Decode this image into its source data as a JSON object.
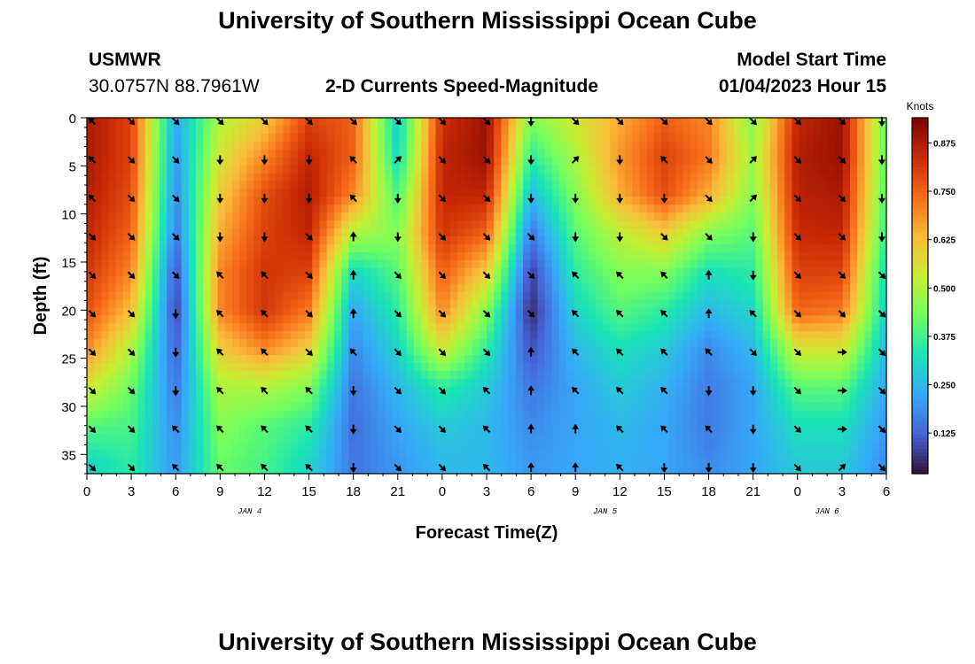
{
  "page": {
    "title": "University of Southern Mississippi Ocean Cube",
    "footer_title": "University of Southern Mississippi Ocean Cube"
  },
  "header": {
    "station": "USMWR",
    "coords": "30.0757N  88.7961W",
    "subtitle": "2-D Currents Speed-Magnitude",
    "model_label": "Model Start Time",
    "model_time": "01/04/2023 Hour 15"
  },
  "chart_data": {
    "type": "heatmap",
    "title": "2-D Currents Speed-Magnitude",
    "xlabel": "Forecast Time(Z)",
    "ylabel": "Depth (ft)",
    "colorbar_label": "Knots",
    "x_ticks": [
      "0",
      "3",
      "6",
      "9",
      "12",
      "15",
      "18",
      "21",
      "0",
      "3",
      "6",
      "9",
      "12",
      "15",
      "18",
      "21",
      "0",
      "3",
      "6"
    ],
    "x_hours": [
      0,
      3,
      6,
      9,
      12,
      15,
      18,
      21,
      24,
      27,
      30,
      33,
      36,
      39,
      42,
      45,
      48,
      51,
      54
    ],
    "date_labels": [
      {
        "label": "JAN 4",
        "hour": 11
      },
      {
        "label": "JAN 5",
        "hour": 35
      },
      {
        "label": "JAN 6",
        "hour": 50
      }
    ],
    "y_ticks": [
      0,
      5,
      10,
      15,
      20,
      25,
      30,
      35
    ],
    "ylim": [
      0,
      37
    ],
    "xlim": [
      0,
      54
    ],
    "colorbar_ticks": [
      0.125,
      0.25,
      0.375,
      0.5,
      0.625,
      0.75,
      0.875
    ],
    "colorbar_tick_labels": [
      "0.125",
      "0.250",
      "0.375",
      "0.500",
      "0.625",
      "0.750",
      "0.875"
    ],
    "colorbar_range": [
      0.02,
      0.94
    ],
    "colors": {
      "scale": [
        "#30123b",
        "#4662d7",
        "#36aaf9",
        "#1ae4b6",
        "#72fe5e",
        "#c8ef34",
        "#faba39",
        "#f66b19",
        "#cb2a04",
        "#7a0403"
      ],
      "arrow": "#000000",
      "axis": "#000000"
    },
    "depths": [
      0,
      4,
      8,
      12,
      16,
      20,
      24,
      28,
      32,
      36
    ],
    "hours": [
      0,
      3,
      6,
      9,
      12,
      15,
      18,
      21,
      24,
      27,
      30,
      33,
      36,
      39,
      42,
      45,
      48,
      51,
      54
    ],
    "speed": [
      [
        0.88,
        0.8,
        0.22,
        0.5,
        0.6,
        0.8,
        0.75,
        0.28,
        0.83,
        0.9,
        0.45,
        0.55,
        0.65,
        0.75,
        0.7,
        0.45,
        0.85,
        0.9,
        0.4
      ],
      [
        0.88,
        0.8,
        0.2,
        0.55,
        0.7,
        0.85,
        0.75,
        0.3,
        0.85,
        0.9,
        0.35,
        0.5,
        0.68,
        0.8,
        0.72,
        0.48,
        0.87,
        0.9,
        0.4
      ],
      [
        0.87,
        0.78,
        0.18,
        0.6,
        0.78,
        0.87,
        0.7,
        0.38,
        0.85,
        0.85,
        0.25,
        0.45,
        0.65,
        0.78,
        0.65,
        0.45,
        0.86,
        0.88,
        0.38
      ],
      [
        0.85,
        0.75,
        0.15,
        0.65,
        0.8,
        0.85,
        0.5,
        0.45,
        0.82,
        0.75,
        0.15,
        0.4,
        0.52,
        0.6,
        0.45,
        0.4,
        0.84,
        0.85,
        0.35
      ],
      [
        0.82,
        0.7,
        0.1,
        0.7,
        0.82,
        0.8,
        0.3,
        0.4,
        0.76,
        0.6,
        0.08,
        0.35,
        0.45,
        0.45,
        0.32,
        0.35,
        0.8,
        0.8,
        0.3
      ],
      [
        0.78,
        0.62,
        0.08,
        0.7,
        0.82,
        0.72,
        0.22,
        0.35,
        0.7,
        0.45,
        0.05,
        0.3,
        0.4,
        0.35,
        0.25,
        0.3,
        0.75,
        0.72,
        0.28
      ],
      [
        0.7,
        0.5,
        0.12,
        0.6,
        0.7,
        0.6,
        0.18,
        0.3,
        0.55,
        0.35,
        0.1,
        0.25,
        0.32,
        0.28,
        0.18,
        0.25,
        0.55,
        0.55,
        0.25
      ],
      [
        0.55,
        0.42,
        0.15,
        0.5,
        0.5,
        0.45,
        0.15,
        0.25,
        0.35,
        0.28,
        0.15,
        0.22,
        0.28,
        0.24,
        0.16,
        0.22,
        0.4,
        0.4,
        0.22
      ],
      [
        0.4,
        0.38,
        0.18,
        0.45,
        0.4,
        0.35,
        0.14,
        0.22,
        0.28,
        0.25,
        0.18,
        0.22,
        0.25,
        0.22,
        0.16,
        0.22,
        0.32,
        0.32,
        0.2
      ],
      [
        0.3,
        0.35,
        0.2,
        0.42,
        0.38,
        0.3,
        0.15,
        0.2,
        0.25,
        0.25,
        0.2,
        0.22,
        0.24,
        0.22,
        0.18,
        0.22,
        0.28,
        0.28,
        0.18
      ]
    ],
    "direction_deg": [
      [
        315,
        135,
        135,
        135,
        135,
        135,
        135,
        135,
        135,
        135,
        180,
        135,
        135,
        135,
        135,
        135,
        135,
        135,
        180
      ],
      [
        315,
        135,
        135,
        180,
        180,
        180,
        315,
        45,
        135,
        135,
        180,
        45,
        180,
        315,
        135,
        45,
        135,
        135,
        180
      ],
      [
        315,
        135,
        135,
        180,
        180,
        180,
        315,
        180,
        135,
        135,
        180,
        180,
        180,
        180,
        135,
        45,
        135,
        135,
        180
      ],
      [
        135,
        135,
        135,
        180,
        180,
        135,
        0,
        180,
        135,
        135,
        135,
        180,
        180,
        135,
        135,
        180,
        135,
        135,
        180
      ],
      [
        135,
        135,
        135,
        315,
        315,
        135,
        0,
        135,
        135,
        135,
        135,
        315,
        315,
        315,
        0,
        180,
        135,
        135,
        135
      ],
      [
        135,
        135,
        180,
        315,
        315,
        135,
        0,
        135,
        135,
        135,
        135,
        315,
        315,
        315,
        0,
        315,
        135,
        135,
        135
      ],
      [
        135,
        135,
        180,
        315,
        315,
        135,
        315,
        135,
        135,
        135,
        0,
        315,
        315,
        315,
        315,
        135,
        135,
        90,
        135
      ],
      [
        135,
        135,
        180,
        315,
        315,
        315,
        180,
        135,
        135,
        315,
        0,
        315,
        315,
        315,
        180,
        180,
        135,
        90,
        135
      ],
      [
        135,
        135,
        315,
        315,
        315,
        315,
        180,
        135,
        135,
        315,
        0,
        0,
        315,
        315,
        315,
        180,
        135,
        90,
        135
      ],
      [
        135,
        135,
        315,
        315,
        315,
        315,
        180,
        135,
        135,
        315,
        0,
        0,
        315,
        180,
        180,
        180,
        135,
        45,
        135
      ]
    ]
  }
}
